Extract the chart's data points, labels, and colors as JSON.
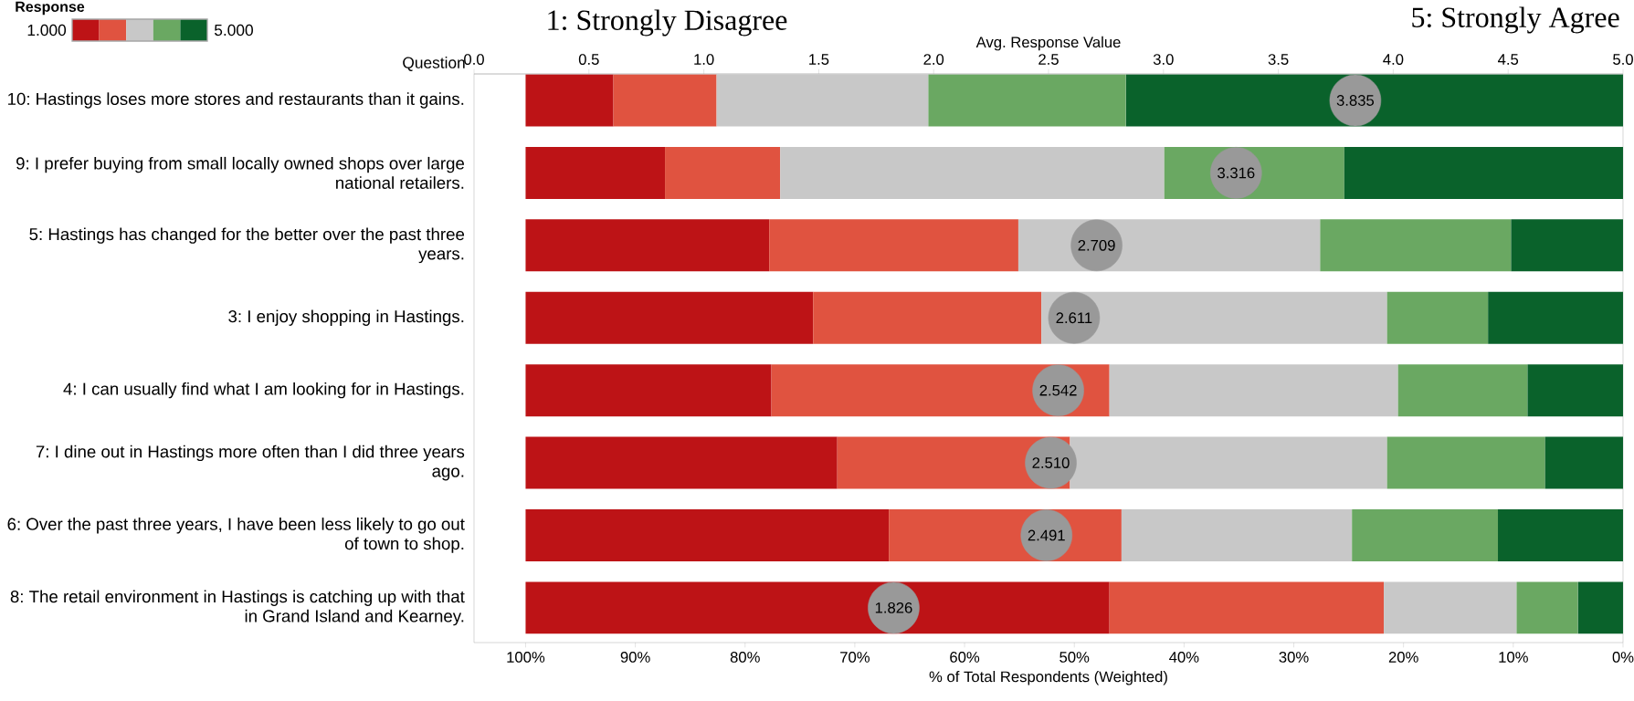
{
  "chart_data": {
    "type": "bar",
    "orientation": "horizontal",
    "stacked": true,
    "ylabel": "Question",
    "xlabel": "% of Total Respondents (Weighted)",
    "x2label": "Avg. Response Value",
    "legend_title": "Response",
    "annotations": [
      "1.000",
      "5.000",
      "1: Strongly Disagree",
      "5: Strongly Agree"
    ],
    "categories": [
      "10: Hastings loses more stores and restaurants than it gains.",
      "9: I prefer buying from small locally owned shops over large national retailers.",
      "5: Hastings has changed for the better over the past three years.",
      "3: I enjoy shopping in Hastings.",
      "4: I can usually find what I am looking for in Hastings.",
      "7: I dine out in Hastings more often than I did three years ago.",
      "6: Over the past three years, I have been less likely to go out of town to shop.",
      "8: The retail environment in Hastings is catching up with that in Grand Island and Kearney."
    ],
    "xlim": [
      104.7,
      0
    ],
    "xticks": [
      {
        "value": 100,
        "label": "100%"
      },
      {
        "value": 90,
        "label": "90%"
      },
      {
        "value": 80,
        "label": "80%"
      },
      {
        "value": 70,
        "label": "70%"
      },
      {
        "value": 60,
        "label": "60%"
      },
      {
        "value": 50,
        "label": "50%"
      },
      {
        "value": 40,
        "label": "40%"
      },
      {
        "value": 30,
        "label": "30%"
      },
      {
        "value": 20,
        "label": "20%"
      },
      {
        "value": 10,
        "label": "10%"
      },
      {
        "value": 0,
        "label": "0%"
      }
    ],
    "x2lim": [
      0,
      5
    ],
    "x2ticks": [
      {
        "value": 0,
        "label": "0.0"
      },
      {
        "value": 0.5,
        "label": "0.5"
      },
      {
        "value": 1,
        "label": "1.0"
      },
      {
        "value": 1.5,
        "label": "1.5"
      },
      {
        "value": 2,
        "label": "2.0"
      },
      {
        "value": 2.5,
        "label": "2.5"
      },
      {
        "value": 3,
        "label": "3.0"
      },
      {
        "value": 3.5,
        "label": "3.5"
      },
      {
        "value": 4,
        "label": "4.0"
      },
      {
        "value": 4.5,
        "label": "4.5"
      },
      {
        "value": 5,
        "label": "5.0"
      }
    ],
    "series": [
      {
        "color": "#0a622b",
        "values": [
          45.3,
          25.4,
          10.2,
          12.3,
          8.7,
          7.1,
          11.4,
          4.1
        ]
      },
      {
        "color": "#6aa862",
        "values": [
          18.0,
          16.4,
          17.4,
          9.2,
          11.8,
          14.4,
          13.3,
          5.6
        ]
      },
      {
        "color": "#c8c8c8",
        "values": [
          19.3,
          35.0,
          27.5,
          31.5,
          26.3,
          28.9,
          21.0,
          12.1
        ]
      },
      {
        "color": "#e05340",
        "values": [
          9.4,
          10.5,
          22.7,
          20.8,
          30.8,
          21.2,
          21.2,
          25.0
        ]
      },
      {
        "color": "#bd1316",
        "values": [
          8.0,
          12.7,
          22.2,
          26.2,
          22.4,
          28.4,
          33.1,
          53.2
        ]
      },
      {
        "type": "scatter",
        "axis": "x2",
        "marker": "circle",
        "color": "#999999",
        "values": [
          3.835,
          3.316,
          2.709,
          2.611,
          2.542,
          2.51,
          2.491,
          1.826
        ],
        "value_labels": [
          "3.835",
          "3.316",
          "2.709",
          "2.611",
          "2.542",
          "2.510",
          "2.491",
          "1.826"
        ]
      }
    ]
  }
}
